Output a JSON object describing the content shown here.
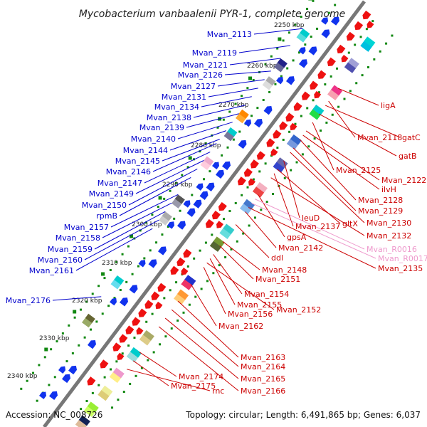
{
  "title": "Mycobacterium vanbaalenii PYR-1, complete genome",
  "accession": "Accession: NC_008726",
  "summary": "Topology: circular; Length: 6,491,865 bp; Genes: 6,037",
  "colors": {
    "forward_label": "#0000cc",
    "reverse_label": "#cc0000",
    "rna_label": "#ee99cc",
    "backbone": "#777777",
    "tick": "#118811"
  },
  "kbp_labels": [
    "2250 kbp",
    "2260 kbp",
    "2270 kbp",
    "2280 kbp",
    "2290 kbp",
    "2300 kbp",
    "2310 kbp",
    "2320 kbp",
    "2330 kbp",
    "2340 kbp"
  ],
  "forward_genes": [
    "Mvan_2113",
    "Mvan_2119",
    "Mvan_2121",
    "Mvan_2126",
    "Mvan_2127",
    "Mvan_2131",
    "Mvan_2134",
    "Mvan_2138",
    "Mvan_2139",
    "Mvan_2140",
    "Mvan_2144",
    "Mvan_2145",
    "Mvan_2146",
    "Mvan_2147",
    "Mvan_2149",
    "Mvan_2150",
    "rpmB",
    "Mvan_2157",
    "Mvan_2158",
    "Mvan_2159",
    "Mvan_2160",
    "Mvan_2161",
    "Mvan_2176"
  ],
  "reverse_genes": [
    "ligA",
    "Mvan_2118",
    "gatC",
    "gatB",
    "Mvan_2125",
    "Mvan_2122",
    "ilvH",
    "Mvan_2128",
    "Mvan_2129",
    "Mvan_2130",
    "leuD",
    "gltX",
    "Mvan_2137",
    "Mvan_2132",
    "gpsA",
    "Mvan_R0016",
    "Mvan_R0017",
    "Mvan_2142",
    "Mvan_2135",
    "ddl",
    "Mvan_2148",
    "Mvan_2151",
    "Mvan_2154",
    "Mvan_2155",
    "Mvan_2152",
    "Mvan_2156",
    "Mvan_2162",
    "Mvan_2163",
    "Mvan_2164",
    "Mvan_2165",
    "Mvan_2174",
    "Mvan_2175",
    "rnc",
    "Mvan_2166"
  ]
}
